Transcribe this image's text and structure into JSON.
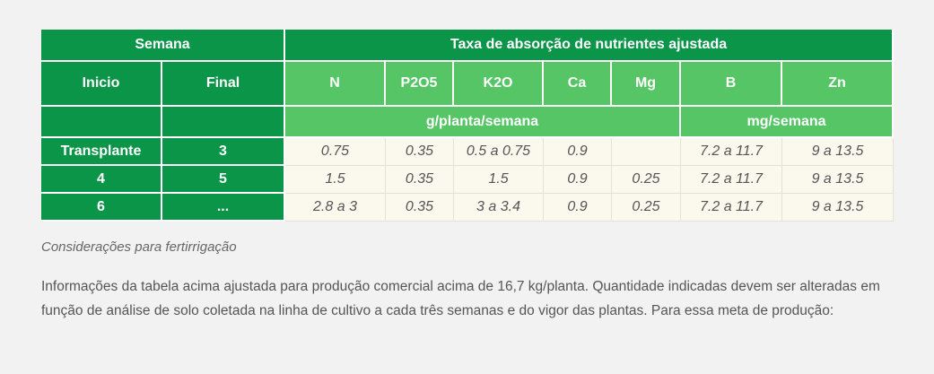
{
  "table": {
    "header_semana": "Semana",
    "header_taxa": "Taxa de absorção de nutrientes ajustada",
    "col_inicio": "Inicio",
    "col_final": "Final",
    "nutrients": [
      "N",
      "P2O5",
      "K2O",
      "Ca",
      "Mg",
      "B",
      "Zn"
    ],
    "unit_g": "g/planta/semana",
    "unit_mg": "mg/semana",
    "rows": [
      {
        "inicio": "Transplante",
        "final": "3",
        "values": [
          "0.75",
          "0.35",
          "0.5 a 0.75",
          "0.9",
          "",
          "7.2 a 11.7",
          "9 a 13.5"
        ]
      },
      {
        "inicio": "4",
        "final": "5",
        "values": [
          "1.5",
          "0.35",
          "1.5",
          "0.9",
          "0.25",
          "7.2 a 11.7",
          "9 a 13.5"
        ]
      },
      {
        "inicio": "6",
        "final": "...",
        "values": [
          "2.8 a 3",
          "0.35",
          "3 a 3.4",
          "0.9",
          "0.25",
          "7.2 a 11.7",
          "9 a 13.5"
        ]
      }
    ]
  },
  "note_title": "Considerações para fertirrigação",
  "paragraph": "Informações da tabela acima ajustada para produção comercial acima de 16,7 kg/planta. Quantidade indicadas devem ser alteradas em função de análise de solo coletada na linha de cultivo a cada três semanas e do vigor das plantas. Para essa meta de produção:"
}
